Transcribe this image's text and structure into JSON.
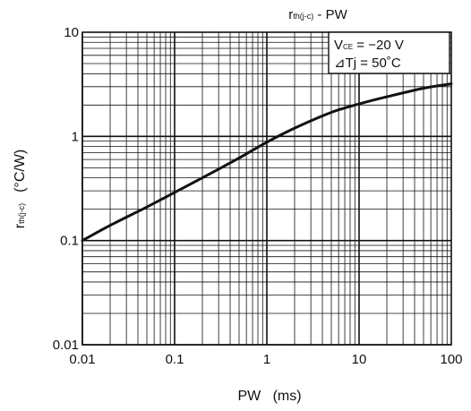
{
  "chart_data": {
    "type": "line",
    "title": {
      "symbol": "r",
      "subscript": "th(j-c)",
      "suffix": " - PW"
    },
    "xlabel": "PW   (ms)",
    "ylabel": {
      "symbol": "r",
      "subscript": "th(j-c)",
      "unit": "(°C/W)"
    },
    "x_scale": "log",
    "y_scale": "log",
    "xlim": [
      0.01,
      100
    ],
    "ylim": [
      0.01,
      10
    ],
    "x_tick_labels": [
      "0.01",
      "0.1",
      "1",
      "10",
      "100"
    ],
    "y_tick_labels": [
      "0.01",
      "0.1",
      "1",
      "10"
    ],
    "grid": true,
    "legend": "none",
    "conditions": {
      "line1": {
        "symbol": "V",
        "subscript": "CE",
        "value": " = −20 V"
      },
      "line2": "⊿Tj = 50˚C",
      "placement": "top-right"
    },
    "series": [
      {
        "x": [
          0.01,
          0.02,
          0.05,
          0.1,
          0.2,
          0.5,
          1,
          2,
          5,
          10,
          20,
          50,
          100
        ],
        "y": [
          0.1,
          0.14,
          0.21,
          0.29,
          0.4,
          0.62,
          0.88,
          1.2,
          1.7,
          2.05,
          2.4,
          2.9,
          3.2
        ]
      }
    ],
    "color": "#111111"
  }
}
